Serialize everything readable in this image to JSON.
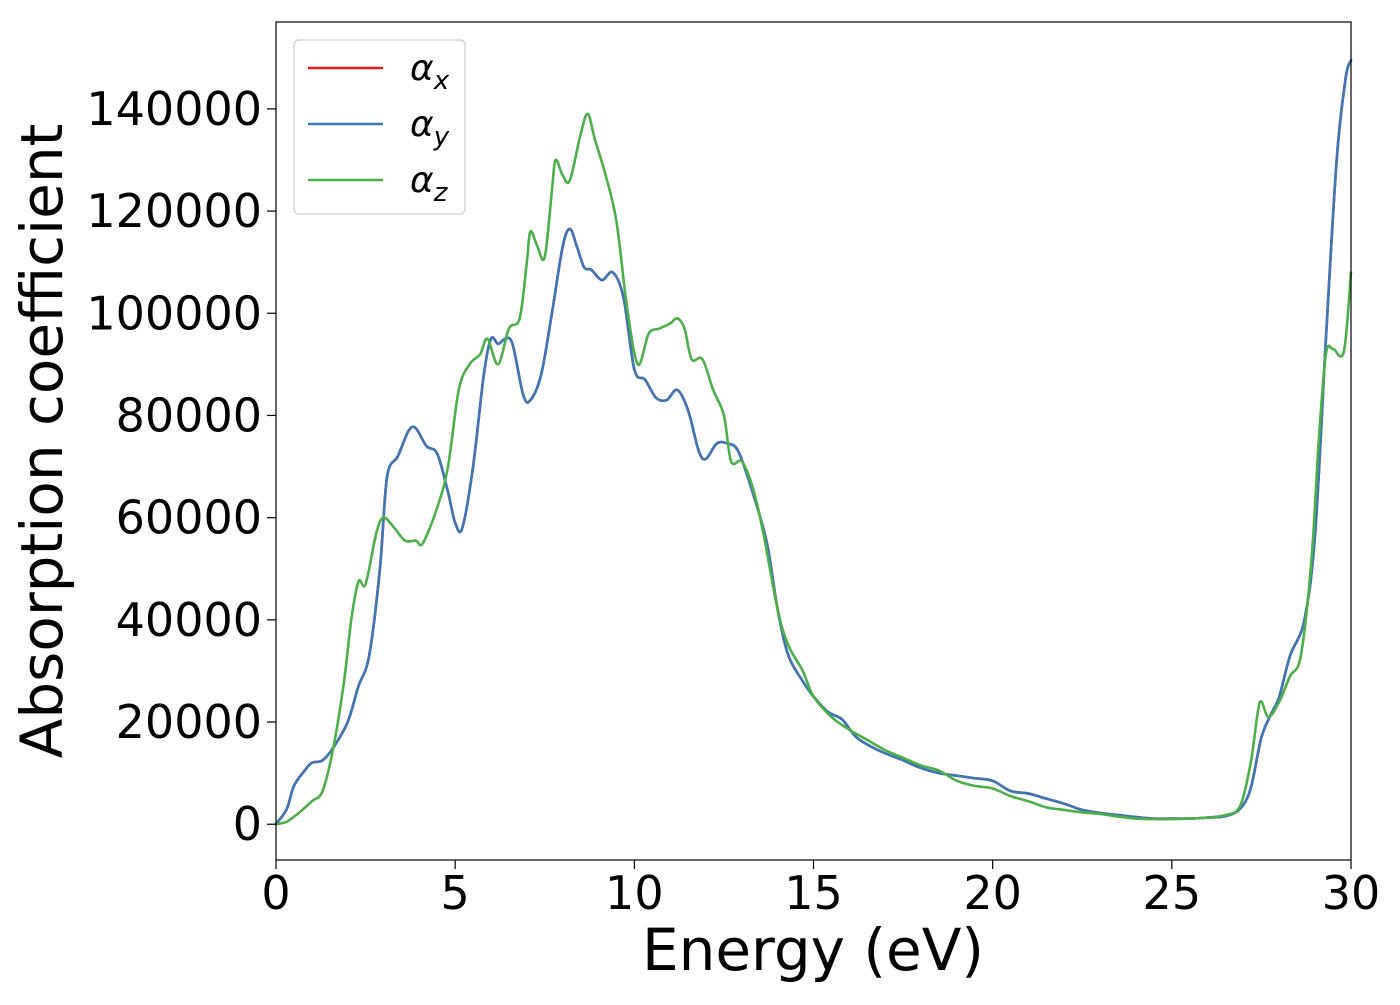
{
  "chart_data": {
    "type": "line",
    "xlabel": "Energy (eV)",
    "ylabel": "Absorption coefficient",
    "xlim": [
      0,
      30
    ],
    "ylim": [
      -7000,
      157000
    ],
    "xticks": [
      0,
      5,
      10,
      15,
      20,
      25,
      30
    ],
    "yticks": [
      0,
      20000,
      40000,
      60000,
      80000,
      100000,
      120000,
      140000
    ],
    "grid": false,
    "legend": {
      "placement": "top-left",
      "entries": [
        {
          "symbol": "α",
          "subscript": "x"
        },
        {
          "symbol": "α",
          "subscript": "y"
        },
        {
          "symbol": "α",
          "subscript": "z"
        }
      ]
    },
    "series": [
      {
        "name": "αx",
        "color": "#e41a1c",
        "points": [
          [
            0,
            0
          ],
          [
            0.3,
            3000
          ],
          [
            0.5,
            7500
          ],
          [
            0.8,
            10500
          ],
          [
            1.0,
            12000
          ],
          [
            1.3,
            12500
          ],
          [
            1.6,
            15000
          ],
          [
            2.0,
            20000
          ],
          [
            2.3,
            27000
          ],
          [
            2.6,
            33000
          ],
          [
            2.9,
            50000
          ],
          [
            3.1,
            68000
          ],
          [
            3.4,
            72000
          ],
          [
            3.7,
            77000
          ],
          [
            3.9,
            77500
          ],
          [
            4.2,
            74000
          ],
          [
            4.5,
            72500
          ],
          [
            4.8,
            65000
          ],
          [
            5.0,
            59000
          ],
          [
            5.2,
            58000
          ],
          [
            5.5,
            70000
          ],
          [
            5.8,
            88000
          ],
          [
            6.0,
            95000
          ],
          [
            6.2,
            94000
          ],
          [
            6.4,
            95000
          ],
          [
            6.6,
            94000
          ],
          [
            6.9,
            84000
          ],
          [
            7.1,
            83000
          ],
          [
            7.4,
            88000
          ],
          [
            7.7,
            100000
          ],
          [
            8.0,
            113000
          ],
          [
            8.2,
            116500
          ],
          [
            8.4,
            113000
          ],
          [
            8.6,
            109000
          ],
          [
            8.8,
            108500
          ],
          [
            9.1,
            106500
          ],
          [
            9.4,
            108000
          ],
          [
            9.7,
            103000
          ],
          [
            10.0,
            89000
          ],
          [
            10.3,
            87000
          ],
          [
            10.6,
            83500
          ],
          [
            10.9,
            83000
          ],
          [
            11.2,
            85000
          ],
          [
            11.5,
            81000
          ],
          [
            11.8,
            73000
          ],
          [
            12.0,
            71500
          ],
          [
            12.3,
            74500
          ],
          [
            12.6,
            74500
          ],
          [
            12.9,
            73000
          ],
          [
            13.3,
            65000
          ],
          [
            13.7,
            55000
          ],
          [
            14.0,
            42000
          ],
          [
            14.3,
            33000
          ],
          [
            14.7,
            28000
          ],
          [
            15.0,
            25000
          ],
          [
            15.4,
            22000
          ],
          [
            15.8,
            20500
          ],
          [
            16.2,
            17000
          ],
          [
            16.8,
            14500
          ],
          [
            17.5,
            12500
          ],
          [
            18.0,
            11000
          ],
          [
            18.5,
            10000
          ],
          [
            19.0,
            9500
          ],
          [
            19.5,
            9000
          ],
          [
            20.0,
            8500
          ],
          [
            20.5,
            6500
          ],
          [
            21.0,
            6000
          ],
          [
            21.5,
            5000
          ],
          [
            22.0,
            4000
          ],
          [
            22.5,
            2800
          ],
          [
            23.0,
            2200
          ],
          [
            23.5,
            1800
          ],
          [
            24.0,
            1400
          ],
          [
            24.5,
            1100
          ],
          [
            25.0,
            1100
          ],
          [
            25.5,
            1100
          ],
          [
            26.0,
            1300
          ],
          [
            26.5,
            1600
          ],
          [
            26.9,
            3000
          ],
          [
            27.2,
            7000
          ],
          [
            27.5,
            17000
          ],
          [
            27.8,
            22000
          ],
          [
            28.0,
            25000
          ],
          [
            28.3,
            33000
          ],
          [
            28.7,
            40000
          ],
          [
            29.0,
            57000
          ],
          [
            29.3,
            95000
          ],
          [
            29.6,
            130000
          ],
          [
            29.85,
            146000
          ],
          [
            30.0,
            149500
          ]
        ]
      },
      {
        "name": "αy",
        "color": "#3b78b5",
        "points": [
          [
            0,
            0
          ],
          [
            0.3,
            3000
          ],
          [
            0.5,
            7500
          ],
          [
            0.8,
            10500
          ],
          [
            1.0,
            12000
          ],
          [
            1.3,
            12500
          ],
          [
            1.6,
            15000
          ],
          [
            2.0,
            20000
          ],
          [
            2.3,
            27000
          ],
          [
            2.6,
            33000
          ],
          [
            2.9,
            50000
          ],
          [
            3.1,
            68000
          ],
          [
            3.4,
            72000
          ],
          [
            3.7,
            77000
          ],
          [
            3.9,
            77500
          ],
          [
            4.2,
            74000
          ],
          [
            4.5,
            72500
          ],
          [
            4.8,
            65000
          ],
          [
            5.0,
            59000
          ],
          [
            5.2,
            58000
          ],
          [
            5.5,
            70000
          ],
          [
            5.8,
            88000
          ],
          [
            6.0,
            95000
          ],
          [
            6.2,
            94000
          ],
          [
            6.4,
            95000
          ],
          [
            6.6,
            94000
          ],
          [
            6.9,
            84000
          ],
          [
            7.1,
            83000
          ],
          [
            7.4,
            88000
          ],
          [
            7.7,
            100000
          ],
          [
            8.0,
            113000
          ],
          [
            8.2,
            116500
          ],
          [
            8.4,
            113000
          ],
          [
            8.6,
            109000
          ],
          [
            8.8,
            108500
          ],
          [
            9.1,
            106500
          ],
          [
            9.4,
            108000
          ],
          [
            9.7,
            103000
          ],
          [
            10.0,
            89000
          ],
          [
            10.3,
            87000
          ],
          [
            10.6,
            83500
          ],
          [
            10.9,
            83000
          ],
          [
            11.2,
            85000
          ],
          [
            11.5,
            81000
          ],
          [
            11.8,
            73000
          ],
          [
            12.0,
            71500
          ],
          [
            12.3,
            74500
          ],
          [
            12.6,
            74500
          ],
          [
            12.9,
            73000
          ],
          [
            13.3,
            65000
          ],
          [
            13.7,
            55000
          ],
          [
            14.0,
            42000
          ],
          [
            14.3,
            33000
          ],
          [
            14.7,
            28000
          ],
          [
            15.0,
            25000
          ],
          [
            15.4,
            22000
          ],
          [
            15.8,
            20500
          ],
          [
            16.2,
            17000
          ],
          [
            16.8,
            14500
          ],
          [
            17.5,
            12500
          ],
          [
            18.0,
            11000
          ],
          [
            18.5,
            10000
          ],
          [
            19.0,
            9500
          ],
          [
            19.5,
            9000
          ],
          [
            20.0,
            8500
          ],
          [
            20.5,
            6500
          ],
          [
            21.0,
            6000
          ],
          [
            21.5,
            5000
          ],
          [
            22.0,
            4000
          ],
          [
            22.5,
            2800
          ],
          [
            23.0,
            2200
          ],
          [
            23.5,
            1800
          ],
          [
            24.0,
            1400
          ],
          [
            24.5,
            1100
          ],
          [
            25.0,
            1100
          ],
          [
            25.5,
            1100
          ],
          [
            26.0,
            1300
          ],
          [
            26.5,
            1600
          ],
          [
            26.9,
            3000
          ],
          [
            27.2,
            7000
          ],
          [
            27.5,
            17000
          ],
          [
            27.8,
            22000
          ],
          [
            28.0,
            25000
          ],
          [
            28.3,
            33000
          ],
          [
            28.7,
            40000
          ],
          [
            29.0,
            57000
          ],
          [
            29.3,
            95000
          ],
          [
            29.6,
            130000
          ],
          [
            29.85,
            146000
          ],
          [
            30.0,
            149500
          ]
        ]
      },
      {
        "name": "αz",
        "color": "#4daf4a",
        "points": [
          [
            0,
            0
          ],
          [
            0.3,
            500
          ],
          [
            0.6,
            2000
          ],
          [
            1.0,
            4500
          ],
          [
            1.3,
            6500
          ],
          [
            1.6,
            15000
          ],
          [
            1.9,
            28000
          ],
          [
            2.1,
            40000
          ],
          [
            2.3,
            47500
          ],
          [
            2.5,
            47000
          ],
          [
            2.8,
            57000
          ],
          [
            3.0,
            60000
          ],
          [
            3.3,
            58000
          ],
          [
            3.6,
            55500
          ],
          [
            3.9,
            55500
          ],
          [
            4.1,
            55000
          ],
          [
            4.5,
            62000
          ],
          [
            4.8,
            70000
          ],
          [
            5.1,
            85000
          ],
          [
            5.4,
            90000
          ],
          [
            5.7,
            92000
          ],
          [
            5.9,
            95000
          ],
          [
            6.2,
            90000
          ],
          [
            6.5,
            97000
          ],
          [
            6.8,
            99000
          ],
          [
            7.0,
            110000
          ],
          [
            7.1,
            116000
          ],
          [
            7.3,
            113000
          ],
          [
            7.5,
            111000
          ],
          [
            7.7,
            124000
          ],
          [
            7.8,
            130000
          ],
          [
            8.0,
            127000
          ],
          [
            8.2,
            126000
          ],
          [
            8.5,
            135000
          ],
          [
            8.7,
            139000
          ],
          [
            8.9,
            134000
          ],
          [
            9.2,
            127000
          ],
          [
            9.5,
            118000
          ],
          [
            9.8,
            101000
          ],
          [
            10.1,
            90000
          ],
          [
            10.4,
            96000
          ],
          [
            10.7,
            97000
          ],
          [
            11.0,
            98000
          ],
          [
            11.2,
            99000
          ],
          [
            11.4,
            97000
          ],
          [
            11.6,
            91000
          ],
          [
            11.9,
            91000
          ],
          [
            12.2,
            85000
          ],
          [
            12.5,
            80000
          ],
          [
            12.7,
            71000
          ],
          [
            13.0,
            71000
          ],
          [
            13.3,
            66000
          ],
          [
            13.6,
            57000
          ],
          [
            14.0,
            42000
          ],
          [
            14.3,
            35000
          ],
          [
            14.7,
            30000
          ],
          [
            15.0,
            25000
          ],
          [
            15.5,
            21000
          ],
          [
            16.0,
            18500
          ],
          [
            16.5,
            16500
          ],
          [
            17.0,
            14500
          ],
          [
            17.5,
            13000
          ],
          [
            18.0,
            11500
          ],
          [
            18.5,
            10500
          ],
          [
            19.0,
            8500
          ],
          [
            19.5,
            7500
          ],
          [
            20.0,
            7000
          ],
          [
            20.5,
            5500
          ],
          [
            21.0,
            4500
          ],
          [
            21.5,
            3300
          ],
          [
            22.0,
            2800
          ],
          [
            22.5,
            2300
          ],
          [
            23.0,
            2000
          ],
          [
            23.5,
            1500
          ],
          [
            24.0,
            1100
          ],
          [
            24.5,
            1000
          ],
          [
            25.0,
            1000
          ],
          [
            25.5,
            1100
          ],
          [
            26.0,
            1300
          ],
          [
            26.5,
            1800
          ],
          [
            26.9,
            3500
          ],
          [
            27.2,
            12000
          ],
          [
            27.4,
            22000
          ],
          [
            27.5,
            24000
          ],
          [
            27.7,
            21000
          ],
          [
            28.0,
            24000
          ],
          [
            28.3,
            29000
          ],
          [
            28.6,
            33000
          ],
          [
            28.9,
            52000
          ],
          [
            29.1,
            75000
          ],
          [
            29.3,
            92000
          ],
          [
            29.5,
            93000
          ],
          [
            29.8,
            92500
          ],
          [
            30.0,
            108000
          ]
        ]
      }
    ]
  }
}
